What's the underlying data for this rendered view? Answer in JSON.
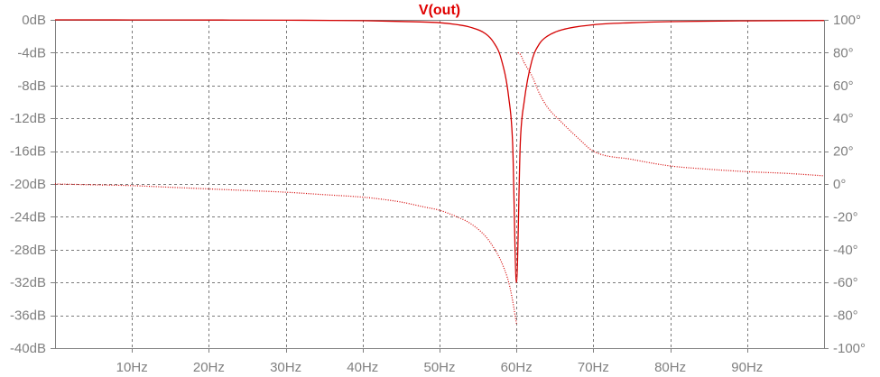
{
  "chart_data": {
    "type": "line",
    "title": "V(out)",
    "xlabel": "",
    "ylabel": "",
    "xlim": [
      0,
      100
    ],
    "ylim": [
      -40,
      0
    ],
    "y2lim": [
      -100,
      100
    ],
    "x_unit": "Hz",
    "y_unit": "dB",
    "y2_unit": "°",
    "x_ticks": [
      10,
      20,
      30,
      40,
      50,
      60,
      70,
      80,
      90
    ],
    "x_tick_labels": [
      "10Hz",
      "20Hz",
      "30Hz",
      "40Hz",
      "50Hz",
      "60Hz",
      "70Hz",
      "80Hz",
      "90Hz"
    ],
    "y_ticks": [
      0,
      -4,
      -8,
      -12,
      -16,
      -20,
      -24,
      -28,
      -32,
      -36,
      -40
    ],
    "y_tick_labels": [
      "0dB",
      "-4dB",
      "-8dB",
      "-12dB",
      "-16dB",
      "-20dB",
      "-24dB",
      "-28dB",
      "-32dB",
      "-36dB",
      "-40dB"
    ],
    "y2_ticks": [
      100,
      80,
      60,
      40,
      20,
      0,
      -20,
      -40,
      -60,
      -80,
      -100
    ],
    "y2_tick_labels": [
      "100°",
      "80°",
      "60°",
      "40°",
      "20°",
      "0°",
      "-20°",
      "-40°",
      "-60°",
      "-80°",
      "-100°"
    ],
    "grid": true,
    "notch_frequency": 60,
    "series": [
      {
        "line_style": "solid",
        "axis": "left",
        "x": [
          0,
          10,
          20,
          30,
          40,
          45,
          50,
          52,
          54,
          56,
          57,
          58,
          59,
          59.5,
          60,
          60.5,
          61,
          62,
          63,
          64,
          66,
          70,
          75,
          80,
          90,
          100
        ],
        "y": [
          0,
          -0.01,
          -0.02,
          -0.04,
          -0.1,
          -0.2,
          -0.35,
          -0.55,
          -0.9,
          -1.7,
          -2.7,
          -4.7,
          -9.5,
          -15,
          -32,
          -15,
          -10,
          -5,
          -2.9,
          -2,
          -1.2,
          -0.6,
          -0.35,
          -0.22,
          -0.12,
          -0.08
        ]
      },
      {
        "line_style": "dotted",
        "axis": "right",
        "x": [
          0,
          5,
          10,
          15,
          20,
          25,
          30,
          35,
          40,
          42,
          45,
          48,
          50,
          52,
          54,
          56,
          57,
          58,
          59,
          59.5,
          60,
          60.2,
          60.5,
          61,
          62,
          63,
          64,
          66,
          68,
          70,
          75,
          80,
          85,
          90,
          95,
          100
        ],
        "y": [
          0,
          -0.5,
          -1,
          -2,
          -3,
          -4,
          -5,
          -6.5,
          -8,
          -9,
          -11,
          -14,
          -16,
          -19.5,
          -24,
          -32,
          -38.5,
          -47,
          -60,
          -71,
          -85,
          80,
          79,
          74,
          66,
          55,
          47,
          37,
          28,
          20,
          15,
          11,
          9,
          7.5,
          6.5,
          5
        ]
      }
    ]
  },
  "colors": {
    "trace": "#d40000",
    "title": "#e00000",
    "grid": "#7a7a7a",
    "axis": "#808080",
    "tick_text": "#808080",
    "background": "#ffffff"
  }
}
